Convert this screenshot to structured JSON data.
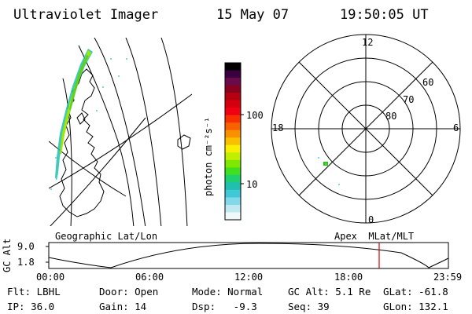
{
  "header": {
    "instrument": "Ultraviolet Imager",
    "date": "15 May 07",
    "time": "19:50:05 UT"
  },
  "colorbar": {
    "unit_label": "photon cm⁻²s⁻¹",
    "ticks": [
      "100",
      "10"
    ],
    "colors": [
      "#000000",
      "#3a0040",
      "#6a0a4a",
      "#8a0020",
      "#b40010",
      "#d40010",
      "#f00010",
      "#f83000",
      "#f86000",
      "#f89000",
      "#f8c000",
      "#f8f000",
      "#c0f000",
      "#80e800",
      "#40e020",
      "#20d070",
      "#20c0b0",
      "#40c8d8",
      "#80d8e8",
      "#c0e8f0",
      "#f0f8f8"
    ]
  },
  "polar": {
    "mlt_labels": {
      "top": "12",
      "left": "18",
      "right": "6",
      "bottom": "0"
    },
    "lat_labels": [
      "60",
      "70",
      "80"
    ]
  },
  "timeline": {
    "left_label": "Geographic Lat/Lon",
    "right_label": "Apex  MLat/MLT",
    "axis_title": "GC Alt",
    "y_ticks": [
      "9.0",
      "1.8"
    ],
    "x_ticks": [
      "00:00",
      "06:00",
      "12:00",
      "18:00",
      "23:59"
    ],
    "marker_color": "#e00000"
  },
  "footer": {
    "row1": [
      "Flt: LBHL",
      "Door: Open",
      "Mode: Normal",
      "GC Alt: 5.1 Re",
      "GLat: -61.8"
    ],
    "row2": [
      "IP: 36.0",
      "Gain: 14",
      "Dsp:   -9.3",
      "Seq: 39",
      "GLon: 132.1"
    ]
  }
}
